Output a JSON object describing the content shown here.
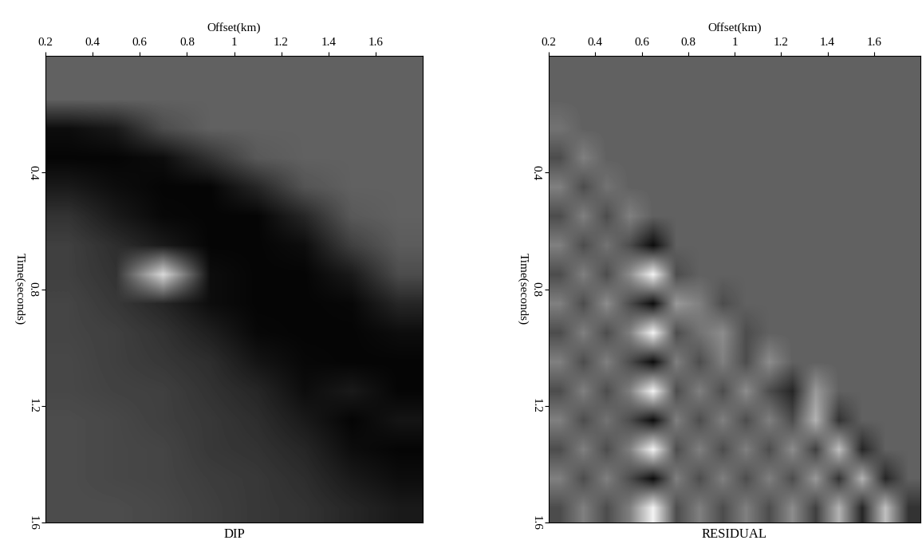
{
  "chart_data": [
    {
      "type": "heatmap",
      "title": "DIP",
      "x_label": "Offset(km)",
      "y_label": "Time(seconds)",
      "xlim": [
        0.2,
        1.8
      ],
      "ylim": [
        1.6,
        0
      ],
      "xticks": [
        0.2,
        0.4,
        0.6,
        0.8,
        1,
        1.2,
        1.4,
        1.6
      ],
      "yticks": [
        0.4,
        0.8,
        1.2,
        1.6
      ],
      "value_range": [
        0,
        1
      ],
      "cells": [
        [
          0.38,
          0.38,
          0.38,
          0.38,
          0.38,
          0.38,
          0.38,
          0.38
        ],
        [
          0.38,
          0.38,
          0.38,
          0.38,
          0.38,
          0.38,
          0.38,
          0.38
        ],
        [
          0.05,
          0.1,
          0.3,
          0.38,
          0.38,
          0.38,
          0.38,
          0.38
        ],
        [
          0.02,
          0.02,
          0.05,
          0.2,
          0.35,
          0.38,
          0.38,
          0.38
        ],
        [
          0.1,
          0.05,
          0.02,
          0.02,
          0.15,
          0.33,
          0.38,
          0.38
        ],
        [
          0.2,
          0.1,
          0.03,
          0.02,
          0.02,
          0.15,
          0.35,
          0.38
        ],
        [
          0.25,
          0.18,
          0.1,
          0.02,
          0.02,
          0.05,
          0.25,
          0.36
        ],
        [
          0.25,
          0.2,
          0.85,
          0.05,
          0.02,
          0.02,
          0.1,
          0.3
        ],
        [
          0.27,
          0.22,
          0.15,
          0.05,
          0.02,
          0.02,
          0.03,
          0.15
        ],
        [
          0.27,
          0.25,
          0.2,
          0.12,
          0.03,
          0.02,
          0.02,
          0.05
        ],
        [
          0.28,
          0.25,
          0.22,
          0.18,
          0.08,
          0.03,
          0.02,
          0.02
        ],
        [
          0.28,
          0.26,
          0.25,
          0.2,
          0.15,
          0.05,
          0.1,
          0.02
        ],
        [
          0.3,
          0.28,
          0.25,
          0.22,
          0.18,
          0.1,
          0.02,
          0.08
        ],
        [
          0.3,
          0.28,
          0.27,
          0.22,
          0.2,
          0.15,
          0.05,
          0.02
        ],
        [
          0.3,
          0.28,
          0.27,
          0.24,
          0.22,
          0.18,
          0.1,
          0.05
        ],
        [
          0.3,
          0.3,
          0.28,
          0.25,
          0.22,
          0.2,
          0.15,
          0.1
        ]
      ]
    },
    {
      "type": "heatmap",
      "title": "RESIDUAL",
      "x_label": "Offset(km)",
      "y_label": "Time(seconds)",
      "xlim": [
        0.2,
        1.8
      ],
      "ylim": [
        1.6,
        0
      ],
      "xticks": [
        0.2,
        0.4,
        0.6,
        0.8,
        1,
        1.2,
        1.4,
        1.6
      ],
      "yticks": [
        0.4,
        0.8,
        1.2,
        1.6
      ],
      "value_range": [
        0,
        1
      ],
      "cells": [
        [
          0.38,
          0.38,
          0.38,
          0.38,
          0.38,
          0.38,
          0.38,
          0.38,
          0.38,
          0.38,
          0.38,
          0.38,
          0.38,
          0.38,
          0.38,
          0.38
        ],
        [
          0.38,
          0.38,
          0.38,
          0.38,
          0.38,
          0.38,
          0.38,
          0.38,
          0.38,
          0.38,
          0.38,
          0.38,
          0.38,
          0.38,
          0.38,
          0.38
        ],
        [
          0.45,
          0.38,
          0.38,
          0.38,
          0.38,
          0.38,
          0.38,
          0.38,
          0.38,
          0.38,
          0.38,
          0.38,
          0.38,
          0.38,
          0.38,
          0.38
        ],
        [
          0.3,
          0.5,
          0.38,
          0.38,
          0.38,
          0.38,
          0.38,
          0.38,
          0.38,
          0.38,
          0.38,
          0.38,
          0.38,
          0.38,
          0.38,
          0.38
        ],
        [
          0.5,
          0.3,
          0.45,
          0.38,
          0.38,
          0.38,
          0.38,
          0.38,
          0.38,
          0.38,
          0.38,
          0.38,
          0.38,
          0.38,
          0.38,
          0.38
        ],
        [
          0.3,
          0.5,
          0.3,
          0.5,
          0.38,
          0.38,
          0.38,
          0.38,
          0.38,
          0.38,
          0.38,
          0.38,
          0.38,
          0.38,
          0.38,
          0.38
        ],
        [
          0.5,
          0.3,
          0.45,
          0.3,
          0.05,
          0.38,
          0.38,
          0.38,
          0.38,
          0.38,
          0.38,
          0.38,
          0.38,
          0.38,
          0.38,
          0.38
        ],
        [
          0.3,
          0.5,
          0.3,
          0.55,
          0.95,
          0.3,
          0.38,
          0.38,
          0.38,
          0.38,
          0.38,
          0.38,
          0.38,
          0.38,
          0.38,
          0.38
        ],
        [
          0.5,
          0.3,
          0.55,
          0.3,
          0.05,
          0.6,
          0.5,
          0.3,
          0.38,
          0.38,
          0.38,
          0.38,
          0.38,
          0.38,
          0.38,
          0.38
        ],
        [
          0.3,
          0.5,
          0.3,
          0.5,
          0.95,
          0.3,
          0.45,
          0.55,
          0.3,
          0.38,
          0.38,
          0.38,
          0.38,
          0.38,
          0.38,
          0.38
        ],
        [
          0.5,
          0.3,
          0.5,
          0.3,
          0.05,
          0.5,
          0.3,
          0.5,
          0.3,
          0.55,
          0.38,
          0.38,
          0.38,
          0.38,
          0.38,
          0.38
        ],
        [
          0.3,
          0.5,
          0.3,
          0.5,
          0.95,
          0.3,
          0.5,
          0.3,
          0.55,
          0.3,
          0.15,
          0.6,
          0.38,
          0.38,
          0.38,
          0.38
        ],
        [
          0.5,
          0.3,
          0.45,
          0.3,
          0.05,
          0.5,
          0.3,
          0.5,
          0.3,
          0.5,
          0.3,
          0.7,
          0.2,
          0.38,
          0.38,
          0.38
        ],
        [
          0.3,
          0.5,
          0.3,
          0.5,
          0.95,
          0.3,
          0.5,
          0.3,
          0.5,
          0.3,
          0.55,
          0.25,
          0.75,
          0.15,
          0.38,
          0.38
        ],
        [
          0.5,
          0.3,
          0.5,
          0.3,
          0.05,
          0.5,
          0.3,
          0.5,
          0.3,
          0.5,
          0.3,
          0.6,
          0.2,
          0.7,
          0.15,
          0.38
        ],
        [
          0.3,
          0.5,
          0.3,
          0.5,
          0.95,
          0.3,
          0.5,
          0.3,
          0.5,
          0.3,
          0.55,
          0.25,
          0.7,
          0.15,
          0.75,
          0.2
        ]
      ]
    }
  ]
}
